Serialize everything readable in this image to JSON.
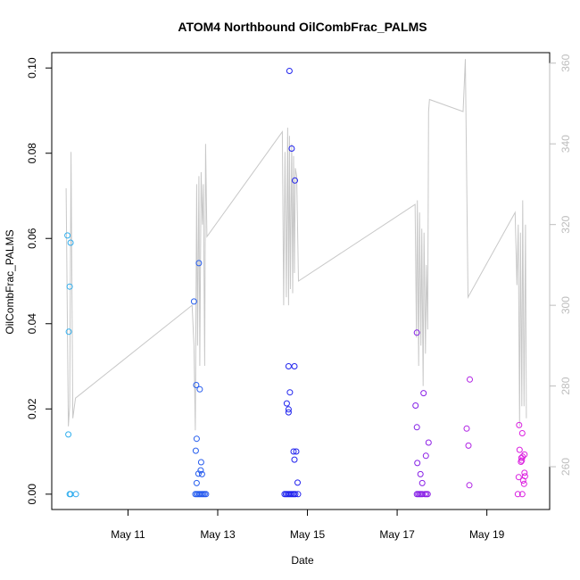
{
  "chart_data": {
    "type": "scatter",
    "title": "ATOM4 Northbound OilCombFrac_PALMS",
    "xlabel": "Date",
    "ylabel": "OilCombFrac_PALMS",
    "xlim": [
      9.3,
      20.4
    ],
    "ylim": [
      -0.0036,
      0.1036
    ],
    "y2lim": [
      249.4,
      362.6
    ],
    "x_ticks": [
      {
        "value": 11,
        "label": "May 11"
      },
      {
        "value": 13,
        "label": "May 13"
      },
      {
        "value": 15,
        "label": "May 15"
      },
      {
        "value": 17,
        "label": "May 17"
      },
      {
        "value": 19,
        "label": "May 19"
      }
    ],
    "y_ticks": [
      0.0,
      0.02,
      0.04,
      0.06,
      0.08,
      0.1
    ],
    "y_tick_labels": [
      "0.00",
      "0.02",
      "0.04",
      "0.06",
      "0.08",
      "0.10"
    ],
    "y2_ticks": [
      260,
      280,
      300,
      320,
      340,
      360
    ],
    "y2_tick_labels": [
      "260",
      "280",
      "300",
      "320",
      "340",
      "360"
    ],
    "colors": {
      "line": "#c8c8c8",
      "right_axis": "#bdbdbd",
      "start": "#2fb0ee",
      "mid": "#2020ee",
      "end": "#e020e0"
    },
    "points": [
      [
        9.65,
        0.0607
      ],
      [
        9.7,
        0.0487
      ],
      [
        9.68,
        0.0381
      ],
      [
        9.67,
        0.014
      ],
      [
        9.72,
        0.059
      ],
      [
        9.7,
        0.0
      ],
      [
        9.72,
        0.0
      ],
      [
        9.84,
        0.0
      ],
      [
        12.47,
        0.0452
      ],
      [
        12.58,
        0.0542
      ],
      [
        12.52,
        0.0256
      ],
      [
        12.6,
        0.0246
      ],
      [
        12.53,
        0.013
      ],
      [
        12.51,
        0.0102
      ],
      [
        12.63,
        0.0075
      ],
      [
        12.62,
        0.0056
      ],
      [
        12.65,
        0.0047
      ],
      [
        12.57,
        0.0048
      ],
      [
        12.53,
        0.0026
      ],
      [
        12.5,
        0.0
      ],
      [
        12.53,
        0.0
      ],
      [
        12.56,
        0.0
      ],
      [
        12.59,
        0.0
      ],
      [
        12.62,
        0.0
      ],
      [
        12.65,
        0.0
      ],
      [
        12.68,
        0.0
      ],
      [
        12.71,
        0.0
      ],
      [
        12.74,
        0.0
      ],
      [
        14.6,
        0.0993
      ],
      [
        14.65,
        0.0811
      ],
      [
        14.72,
        0.0736
      ],
      [
        14.58,
        0.03
      ],
      [
        14.71,
        0.03
      ],
      [
        14.61,
        0.0239
      ],
      [
        14.54,
        0.0213
      ],
      [
        14.58,
        0.0199
      ],
      [
        14.58,
        0.0192
      ],
      [
        14.69,
        0.01
      ],
      [
        14.75,
        0.01
      ],
      [
        14.71,
        0.0081
      ],
      [
        14.78,
        0.0027
      ],
      [
        14.49,
        0.0
      ],
      [
        14.52,
        0.0
      ],
      [
        14.55,
        0.0
      ],
      [
        14.58,
        0.0
      ],
      [
        14.61,
        0.0
      ],
      [
        14.64,
        0.0
      ],
      [
        14.67,
        0.0
      ],
      [
        14.7,
        0.0
      ],
      [
        14.73,
        0.0
      ],
      [
        14.79,
        0.0
      ],
      [
        17.44,
        0.0379
      ],
      [
        17.59,
        0.0237
      ],
      [
        17.41,
        0.0208
      ],
      [
        17.44,
        0.0157
      ],
      [
        17.7,
        0.0121
      ],
      [
        17.64,
        0.009
      ],
      [
        17.45,
        0.0073
      ],
      [
        17.52,
        0.0047
      ],
      [
        17.56,
        0.0026
      ],
      [
        17.44,
        0.0
      ],
      [
        17.47,
        0.0
      ],
      [
        17.5,
        0.0
      ],
      [
        17.53,
        0.0
      ],
      [
        17.56,
        0.0
      ],
      [
        17.62,
        0.0
      ],
      [
        17.65,
        0.0
      ],
      [
        17.68,
        0.0
      ],
      [
        18.62,
        0.0269
      ],
      [
        18.55,
        0.0154
      ],
      [
        18.59,
        0.0114
      ],
      [
        18.61,
        0.0021
      ],
      [
        19.72,
        0.0162
      ],
      [
        19.79,
        0.0143
      ],
      [
        19.73,
        0.0104
      ],
      [
        19.84,
        0.0093
      ],
      [
        19.8,
        0.0088
      ],
      [
        19.77,
        0.0085
      ],
      [
        19.78,
        0.0079
      ],
      [
        19.76,
        0.0076
      ],
      [
        19.84,
        0.005
      ],
      [
        19.85,
        0.0042
      ],
      [
        19.71,
        0.004
      ],
      [
        19.81,
        0.0032
      ],
      [
        19.83,
        0.0024
      ],
      [
        19.69,
        0.0
      ],
      [
        19.79,
        0.0
      ]
    ],
    "line_y2": [
      [
        9.62,
        329
      ],
      [
        9.67,
        270
      ],
      [
        9.7,
        275
      ],
      [
        9.73,
        338
      ],
      [
        9.77,
        272
      ],
      [
        9.83,
        277
      ],
      [
        12.43,
        300
      ],
      [
        12.47,
        290
      ],
      [
        12.5,
        269
      ],
      [
        12.53,
        330
      ],
      [
        12.55,
        290
      ],
      [
        12.58,
        332
      ],
      [
        12.6,
        285
      ],
      [
        12.63,
        333
      ],
      [
        12.66,
        320
      ],
      [
        12.68,
        330
      ],
      [
        12.71,
        285
      ],
      [
        12.73,
        340
      ],
      [
        12.76,
        317
      ],
      [
        14.44,
        343
      ],
      [
        14.47,
        300
      ],
      [
        14.5,
        338
      ],
      [
        14.53,
        302
      ],
      [
        14.56,
        344
      ],
      [
        14.58,
        300
      ],
      [
        14.6,
        342
      ],
      [
        14.62,
        304
      ],
      [
        14.65,
        340
      ],
      [
        14.67,
        303
      ],
      [
        14.69,
        337
      ],
      [
        14.71,
        308
      ],
      [
        14.73,
        334
      ],
      [
        14.76,
        332
      ],
      [
        14.8,
        306
      ],
      [
        17.4,
        325
      ],
      [
        17.43,
        292
      ],
      [
        17.45,
        326
      ],
      [
        17.48,
        285
      ],
      [
        17.5,
        323
      ],
      [
        17.53,
        290
      ],
      [
        17.55,
        319
      ],
      [
        17.58,
        280
      ],
      [
        17.6,
        318
      ],
      [
        17.63,
        288
      ],
      [
        17.65,
        310
      ],
      [
        17.68,
        294
      ],
      [
        17.7,
        348
      ],
      [
        17.72,
        351
      ],
      [
        18.47,
        348
      ],
      [
        18.52,
        361
      ],
      [
        18.58,
        302
      ],
      [
        19.63,
        323
      ],
      [
        19.67,
        305
      ],
      [
        19.7,
        320
      ],
      [
        19.73,
        270
      ],
      [
        19.75,
        318
      ],
      [
        19.78,
        275
      ],
      [
        19.8,
        326
      ],
      [
        19.83,
        275
      ],
      [
        19.86,
        320
      ],
      [
        19.88,
        272
      ]
    ]
  }
}
